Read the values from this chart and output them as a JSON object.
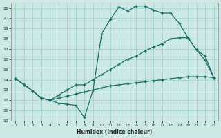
{
  "bg_color": "#cce8e5",
  "line_color": "#1a6e65",
  "grid_color": "#9ecfca",
  "xlabel": "Humidex (Indice chaleur)",
  "xlim": [
    -0.5,
    23.5
  ],
  "ylim": [
    10,
    21.5
  ],
  "xticks": [
    0,
    1,
    2,
    3,
    4,
    5,
    6,
    7,
    8,
    9,
    10,
    11,
    12,
    13,
    14,
    15,
    16,
    17,
    18,
    19,
    20,
    21,
    22,
    23
  ],
  "yticks": [
    10,
    11,
    12,
    13,
    14,
    15,
    16,
    17,
    18,
    19,
    20,
    21
  ],
  "line1_x": [
    0,
    1,
    2,
    3,
    4,
    5,
    6,
    7,
    8,
    9,
    10,
    11,
    12,
    13,
    14,
    15,
    16,
    17,
    18,
    19,
    20,
    21,
    22,
    23
  ],
  "line1_y": [
    14.1,
    13.5,
    12.9,
    12.2,
    12.0,
    11.7,
    11.6,
    11.5,
    10.3,
    13.0,
    18.5,
    19.9,
    21.1,
    20.7,
    21.2,
    21.2,
    20.8,
    20.5,
    20.5,
    19.5,
    18.1,
    16.9,
    15.9,
    14.2
  ],
  "line2_x": [
    0,
    1,
    2,
    3,
    4,
    5,
    6,
    7,
    8,
    9,
    10,
    11,
    12,
    13,
    14,
    15,
    16,
    17,
    18,
    19,
    20,
    21,
    22,
    23
  ],
  "line2_y": [
    14.1,
    13.5,
    12.9,
    12.2,
    12.0,
    12.5,
    13.0,
    13.5,
    13.5,
    14.0,
    14.5,
    15.0,
    15.5,
    16.0,
    16.3,
    16.8,
    17.2,
    17.5,
    18.0,
    18.1,
    18.1,
    16.9,
    16.3,
    14.2
  ],
  "line3_x": [
    0,
    1,
    2,
    3,
    4,
    5,
    6,
    7,
    8,
    9,
    10,
    11,
    12,
    13,
    14,
    15,
    16,
    17,
    18,
    19,
    20,
    21,
    22,
    23
  ],
  "line3_y": [
    14.1,
    13.5,
    12.9,
    12.2,
    12.0,
    12.2,
    12.4,
    12.6,
    12.8,
    13.0,
    13.2,
    13.4,
    13.5,
    13.6,
    13.7,
    13.8,
    13.9,
    14.0,
    14.1,
    14.2,
    14.3,
    14.3,
    14.3,
    14.2
  ]
}
